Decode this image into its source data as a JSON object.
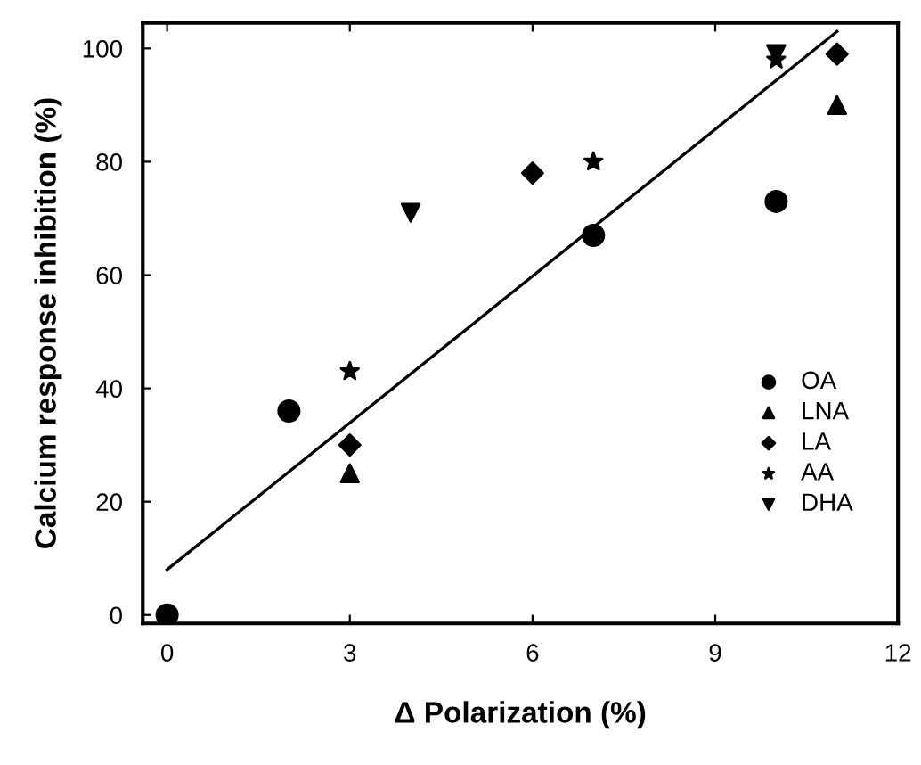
{
  "chart_data": {
    "type": "scatter",
    "xlabel": "Δ Polarization (%)",
    "ylabel": "Calcium response inhibition (%)",
    "xlim": [
      -0.4,
      12
    ],
    "ylim": [
      -1.5,
      104.5
    ],
    "xticks": [
      0,
      3,
      6,
      9,
      12
    ],
    "yticks": [
      0,
      20,
      40,
      60,
      80,
      100
    ],
    "grid": false,
    "legend": "right",
    "series": [
      {
        "name": "OA",
        "color": "#000000",
        "marker": "circle",
        "x": [
          0,
          2,
          7,
          10
        ],
        "values": [
          0,
          36,
          67,
          73
        ]
      },
      {
        "name": "LNA",
        "color": "#000000",
        "marker": "triangle",
        "x": [
          3,
          11
        ],
        "values": [
          25,
          90
        ]
      },
      {
        "name": "LA",
        "color": "#000000",
        "marker": "diamond",
        "x": [
          3,
          6,
          11
        ],
        "values": [
          30,
          78,
          99
        ]
      },
      {
        "name": "AA",
        "color": "#000000",
        "marker": "star",
        "x": [
          3,
          7,
          10
        ],
        "values": [
          43,
          80,
          98
        ]
      },
      {
        "name": "DHA",
        "color": "#000000",
        "marker": "triangle_down",
        "x": [
          4,
          10
        ],
        "values": [
          71,
          99
        ]
      },
      {
        "type": "line",
        "color": "#000000",
        "x": [
          0,
          11
        ],
        "values": [
          8,
          103
        ]
      }
    ]
  }
}
